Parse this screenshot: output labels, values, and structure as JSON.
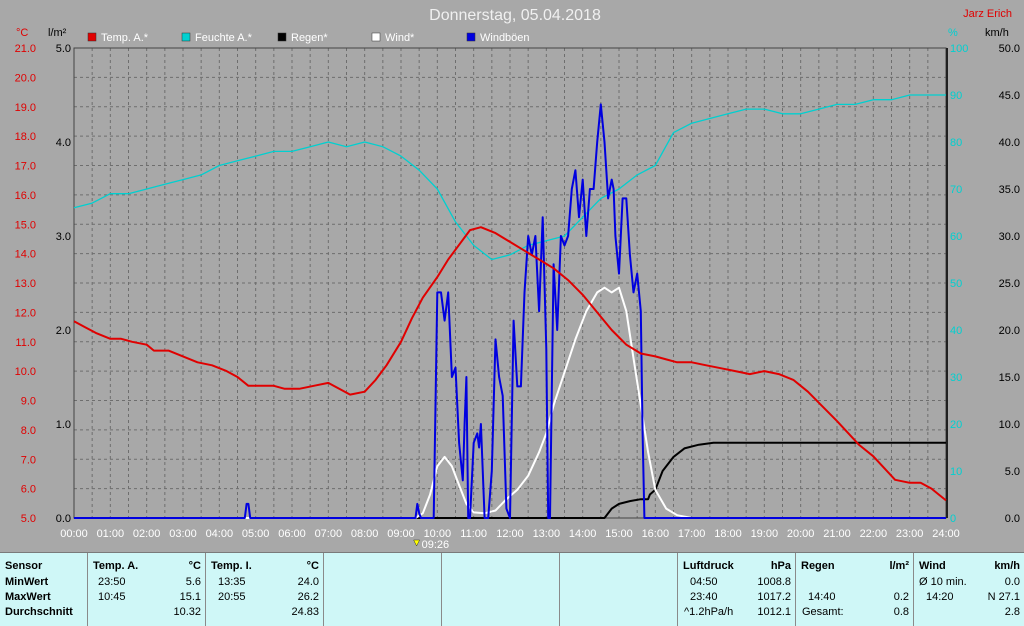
{
  "chart_data": {
    "type": "line",
    "title": "Donnerstag, 05.04.2018",
    "author": "Jarz Erich",
    "x_ticks": [
      "00:00",
      "01:00",
      "02:00",
      "03:00",
      "04:00",
      "05:00",
      "06:00",
      "07:00",
      "08:00",
      "09:00",
      "10:00",
      "11:00",
      "12:00",
      "13:00",
      "14:00",
      "15:00",
      "16:00",
      "17:00",
      "18:00",
      "19:00",
      "20:00",
      "21:00",
      "22:00",
      "23:00",
      "24:00"
    ],
    "x_marker_label": "09:26",
    "x_marker_hour": 9.43,
    "axes": {
      "temp": {
        "unit": "°C",
        "min": 5,
        "max": 21,
        "ticks": [
          "21.0",
          "20.0",
          "19.0",
          "18.0",
          "17.0",
          "16.0",
          "15.0",
          "14.0",
          "13.0",
          "12.0",
          "11.0",
          "10.0",
          "9.0",
          "8.0",
          "7.0",
          "6.0",
          "5.0"
        ]
      },
      "rain": {
        "unit": "l/m²",
        "min": 0,
        "max": 5,
        "ticks": [
          "5.0",
          "4.0",
          "3.0",
          "2.0",
          "1.0",
          "0.0"
        ]
      },
      "humidity": {
        "unit": "%",
        "min": 0,
        "max": 100,
        "ticks": [
          "100",
          "90",
          "80",
          "70",
          "60",
          "50",
          "40",
          "30",
          "20",
          "10",
          "0"
        ]
      },
      "wind": {
        "unit": "km/h",
        "min": 0,
        "max": 50,
        "ticks": [
          "50.0",
          "45.0",
          "40.0",
          "35.0",
          "30.0",
          "25.0",
          "20.0",
          "15.0",
          "10.0",
          "5.0",
          "0.0"
        ]
      }
    },
    "legend": [
      {
        "name": "Temp. A.*",
        "color": "#e00000"
      },
      {
        "name": "Feuchte A.*",
        "color": "#00d0d0"
      },
      {
        "name": "Regen*",
        "color": "#000000"
      },
      {
        "name": "Wind*",
        "color": "#ffffff"
      },
      {
        "name": "Windböen",
        "color": "#0000e0"
      }
    ],
    "series": [
      {
        "name": "Temp. A.*",
        "axis": "temp",
        "color": "#e00000",
        "x": [
          0,
          0.3,
          0.6,
          1,
          1.3,
          1.6,
          2,
          2.2,
          2.6,
          3,
          3.4,
          3.8,
          4.2,
          4.5,
          4.8,
          5.1,
          5.5,
          5.8,
          6.2,
          6.6,
          7,
          7.3,
          7.6,
          8,
          8.3,
          8.6,
          9,
          9.3,
          9.6,
          10,
          10.3,
          10.6,
          10.9,
          11.2,
          11.6,
          12,
          12.4,
          12.8,
          13.2,
          13.6,
          14,
          14.4,
          14.8,
          15.2,
          15.6,
          16,
          16.3,
          16.6,
          17,
          17.4,
          17.8,
          18.2,
          18.6,
          19,
          19.4,
          19.8,
          20.2,
          20.6,
          21,
          21.3,
          21.6,
          22,
          22.3,
          22.6,
          23,
          23.3,
          23.6,
          23.8,
          24
        ],
        "y": [
          11.7,
          11.5,
          11.3,
          11.1,
          11.1,
          11.0,
          10.9,
          10.7,
          10.7,
          10.5,
          10.3,
          10.2,
          10.0,
          9.8,
          9.5,
          9.5,
          9.5,
          9.4,
          9.4,
          9.5,
          9.6,
          9.4,
          9.2,
          9.3,
          9.7,
          10.2,
          11.0,
          11.8,
          12.5,
          13.2,
          13.8,
          14.3,
          14.8,
          14.9,
          14.7,
          14.4,
          14.1,
          13.8,
          13.5,
          13.1,
          12.6,
          12.0,
          11.4,
          10.9,
          10.6,
          10.5,
          10.4,
          10.3,
          10.3,
          10.2,
          10.1,
          10.0,
          9.9,
          10.0,
          9.9,
          9.7,
          9.3,
          8.8,
          8.3,
          7.9,
          7.5,
          7.1,
          6.7,
          6.3,
          6.2,
          6.2,
          6.0,
          5.8,
          5.6
        ]
      },
      {
        "name": "Feuchte A.*",
        "axis": "humidity",
        "color": "#00d0d0",
        "x": [
          0,
          0.5,
          1,
          1.5,
          2,
          2.5,
          3,
          3.5,
          4,
          4.5,
          5,
          5.5,
          6,
          6.5,
          7,
          7.5,
          8,
          8.5,
          9,
          9.5,
          10,
          10.5,
          11,
          11.5,
          12,
          12.5,
          13,
          13.5,
          14,
          14.5,
          15,
          15.5,
          16,
          16.5,
          17,
          17.5,
          18,
          18.5,
          19,
          19.5,
          20,
          20.5,
          21,
          21.5,
          22,
          22.5,
          23,
          23.5,
          24
        ],
        "y": [
          66,
          67,
          69,
          69,
          70,
          71,
          72,
          73,
          75,
          76,
          77,
          78,
          78,
          79,
          80,
          79,
          80,
          79,
          77,
          74,
          70,
          63,
          58,
          55,
          56,
          58,
          59,
          60,
          64,
          68,
          70,
          73,
          75,
          82,
          84,
          85,
          86,
          87,
          87,
          86,
          86,
          87,
          88,
          88,
          89,
          89,
          90,
          90,
          90
        ]
      },
      {
        "name": "Regen*",
        "axis": "rain",
        "color": "#000000",
        "x": [
          0,
          14.6,
          14.8,
          15.0,
          15.3,
          15.6,
          15.8,
          15.85,
          16.0,
          16.2,
          16.5,
          16.8,
          17.2,
          17.6,
          18,
          19,
          20,
          21,
          22,
          23,
          24
        ],
        "y": [
          0,
          0,
          0.1,
          0.15,
          0.18,
          0.2,
          0.2,
          0.25,
          0.3,
          0.5,
          0.65,
          0.74,
          0.78,
          0.8,
          0.8,
          0.8,
          0.8,
          0.8,
          0.8,
          0.8,
          0.8
        ]
      },
      {
        "name": "Wind*",
        "axis": "wind",
        "color": "#ffffff",
        "x": [
          0,
          9.4,
          9.6,
          9.8,
          10.0,
          10.2,
          10.4,
          10.6,
          10.8,
          11.0,
          11.3,
          11.6,
          11.9,
          12.2,
          12.5,
          12.8,
          13.0,
          13.2,
          13.5,
          13.8,
          14.1,
          14.4,
          14.6,
          14.8,
          15.0,
          15.2,
          15.4,
          15.6,
          15.8,
          16.0,
          16.3,
          16.6,
          17.0,
          24
        ],
        "y": [
          0,
          0,
          0.5,
          2.5,
          5.5,
          6.5,
          5.5,
          3.5,
          1.5,
          0.6,
          0.5,
          0.8,
          2.0,
          3.0,
          4.5,
          7.0,
          9.0,
          12.0,
          15.5,
          19.0,
          22.0,
          24.0,
          24.5,
          24.0,
          24.5,
          22.0,
          17.0,
          12.0,
          7.0,
          3.0,
          1.0,
          0.3,
          0,
          0
        ]
      },
      {
        "name": "Windböen",
        "axis": "wind",
        "color": "#0000e0",
        "x": [
          0,
          4.7,
          4.75,
          4.8,
          4.85,
          9.4,
          9.45,
          9.5,
          9.55,
          9.6,
          9.9,
          10.0,
          10.1,
          10.2,
          10.3,
          10.4,
          10.5,
          10.6,
          10.7,
          10.75,
          10.8,
          10.85,
          10.9,
          11.0,
          11.1,
          11.15,
          11.2,
          11.3,
          11.4,
          11.5,
          11.6,
          11.7,
          11.8,
          11.9,
          12.0,
          12.1,
          12.2,
          12.3,
          12.4,
          12.5,
          12.6,
          12.7,
          12.8,
          12.9,
          13.0,
          13.05,
          13.1,
          13.2,
          13.3,
          13.4,
          13.5,
          13.6,
          13.7,
          13.8,
          13.9,
          14.0,
          14.1,
          14.2,
          14.3,
          14.4,
          14.5,
          14.6,
          14.7,
          14.75,
          14.8,
          14.85,
          14.9,
          15.0,
          15.1,
          15.2,
          15.3,
          15.4,
          15.5,
          15.55,
          15.6,
          15.65,
          15.7,
          15.75,
          15.8,
          15.85,
          16.0,
          16.5,
          24
        ],
        "y": [
          0,
          0,
          1.5,
          1.5,
          0,
          0,
          1.5,
          0.5,
          0,
          0,
          0,
          24,
          24,
          21,
          24,
          15,
          16,
          8,
          4,
          10,
          15,
          0,
          0,
          8,
          9,
          7.5,
          10,
          0,
          0,
          5,
          19,
          15,
          13,
          1,
          0,
          21,
          14,
          14,
          24,
          30,
          28,
          30,
          22,
          32,
          18,
          0,
          0,
          27,
          20,
          30,
          29,
          30,
          35,
          37,
          32,
          36,
          30,
          35,
          35,
          40,
          44,
          40,
          34,
          35,
          36,
          35,
          30,
          26,
          34,
          34,
          28,
          24,
          26,
          24,
          22,
          9,
          0,
          0,
          0,
          0,
          0,
          0,
          0
        ]
      }
    ]
  },
  "table": {
    "sensor": {
      "header": "Sensor",
      "rows": [
        "MinWert",
        "MaxWert",
        "Durchschnitt"
      ]
    },
    "temp_a": {
      "header": "Temp. A.",
      "unit": "°C",
      "min_time": "23:50",
      "min_val": "5.6",
      "max_time": "10:45",
      "max_val": "15.1",
      "avg": "10.32"
    },
    "temp_i": {
      "header": "Temp. I.",
      "unit": "°C",
      "min_time": "13:35",
      "min_val": "24.0",
      "max_time": "20:55",
      "max_val": "26.2",
      "avg": "24.83"
    },
    "pressure": {
      "header": "Luftdruck",
      "unit": "hPa",
      "min_time": "04:50",
      "min_val": "1008.8",
      "max_time": "23:40",
      "max_val": "1017.2",
      "trend": "^1.2hPa/h",
      "avg": "1012.1"
    },
    "rain": {
      "header": "Regen",
      "unit": "l/m²",
      "max_time": "14:40",
      "max_val": "0.2",
      "total_label": "Gesamt:",
      "total": "0.8"
    },
    "wind": {
      "header": "Wind",
      "unit": "km/h",
      "avg_label": "Ø 10 min.",
      "avg_val": "0.0",
      "max_time": "14:20",
      "max_val": "N 27.1",
      "day_avg": "2.8"
    }
  }
}
